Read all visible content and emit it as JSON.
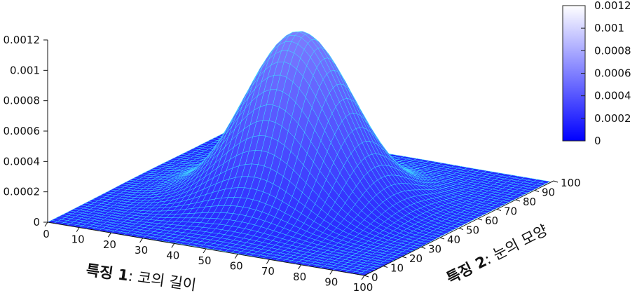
{
  "chart_data": {
    "type": "surface3d",
    "title": "",
    "x_axis": {
      "label_bold": "특징 1",
      "label_rest": ": 코의 길이",
      "range": [
        0,
        100
      ],
      "ticks": [
        "0",
        "10",
        "20",
        "30",
        "40",
        "50",
        "60",
        "70",
        "80",
        "90",
        "100"
      ]
    },
    "y_axis": {
      "label_bold": "특징 2",
      "label_rest": ": 눈의 모양",
      "range": [
        0,
        100
      ],
      "ticks": [
        "0",
        "10",
        "20",
        "30",
        "40",
        "50",
        "60",
        "70",
        "80",
        "90",
        "100"
      ]
    },
    "z_axis": {
      "label": "",
      "range": [
        0,
        0.0012
      ],
      "ticks": [
        "0",
        "0.0002",
        "0.0004",
        "0.0006",
        "0.0008",
        "0.001",
        "0.0012"
      ]
    },
    "surface": {
      "distribution": "bivariate gaussian",
      "mean": [
        50,
        50
      ],
      "std": [
        15,
        15
      ],
      "peak": 0.00112
    },
    "colorbar": {
      "range": [
        0,
        0.0012
      ],
      "ticks": [
        "0",
        "0.0002",
        "0.0004",
        "0.0006",
        "0.0008",
        "0.001",
        "0.0012"
      ],
      "color_low": "#0000ff",
      "color_high": "#ffffff"
    },
    "mesh_color": "#40e0ff",
    "grid": false,
    "legend": "none"
  }
}
